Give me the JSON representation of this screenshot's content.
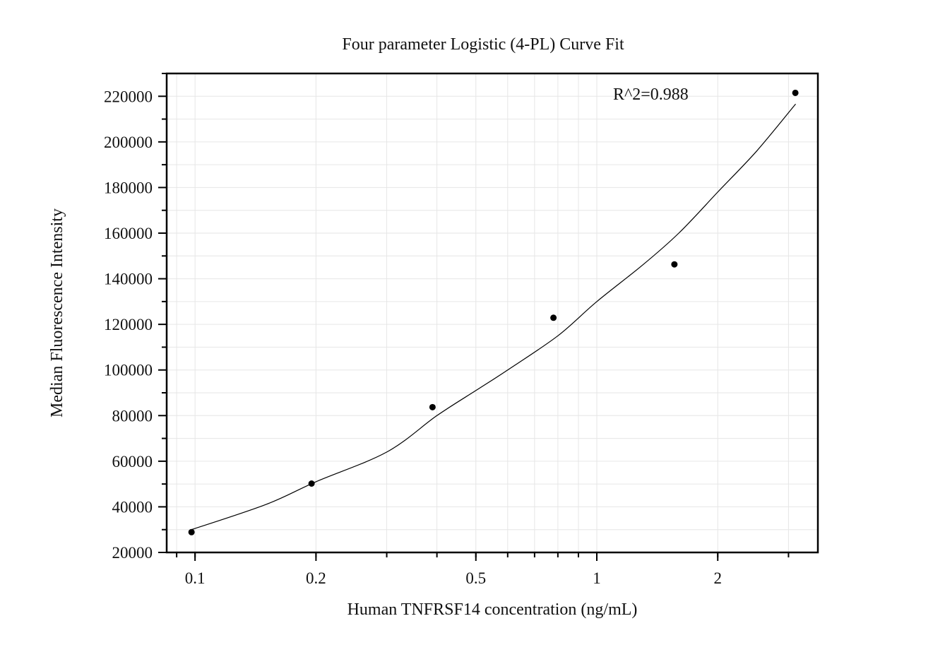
{
  "chart_data": {
    "type": "scatter",
    "title": "Four parameter Logistic (4-PL) Curve Fit",
    "xlabel": "Human TNFRSF14 concentration (ng/mL)",
    "ylabel": "Median Fluorescence Intensity",
    "xscale": "log",
    "xlim": [
      0.085,
      3.55
    ],
    "ylim": [
      20000,
      230000
    ],
    "xticks": [
      0.1,
      0.2,
      0.5,
      1,
      2
    ],
    "xtick_labels": [
      "0.1",
      "0.2",
      "0.5",
      "1",
      "2"
    ],
    "yticks": [
      20000,
      40000,
      60000,
      80000,
      100000,
      120000,
      140000,
      160000,
      180000,
      200000,
      220000
    ],
    "ytick_labels": [
      "20000",
      "40000",
      "60000",
      "80000",
      "100000",
      "120000",
      "140000",
      "160000",
      "180000",
      "200000",
      "220000"
    ],
    "grid": true,
    "annotation": "R^2=0.988",
    "points": [
      {
        "x": 0.098,
        "y": 28900
      },
      {
        "x": 0.195,
        "y": 50200
      },
      {
        "x": 0.39,
        "y": 83700
      },
      {
        "x": 0.78,
        "y": 122900
      },
      {
        "x": 1.56,
        "y": 146300
      },
      {
        "x": 3.12,
        "y": 221500
      }
    ],
    "fit_curve": {
      "x": [
        0.098,
        0.15,
        0.2,
        0.3,
        0.4,
        0.5,
        0.6,
        0.8,
        1.0,
        1.3,
        1.6,
        2.0,
        2.5,
        3.125
      ],
      "y": [
        30000,
        41000,
        51000,
        64000,
        80000,
        91000,
        100000,
        115000,
        130000,
        146000,
        160000,
        178000,
        196000,
        216600
      ]
    }
  }
}
